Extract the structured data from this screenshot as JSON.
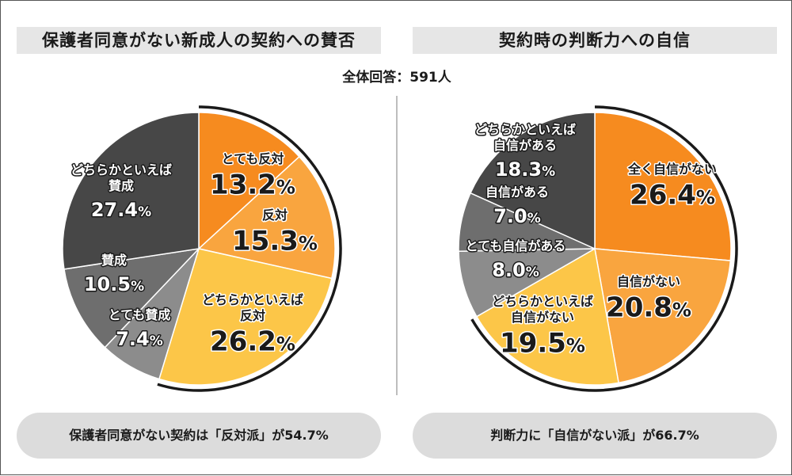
{
  "header": {
    "left_title": "保護者同意がない新成人の契約への賛否",
    "right_title": "契約時の判断力への自信",
    "respondents": "全体回答：591人"
  },
  "summary": {
    "left": "保護者同意がない契約は「反対派」が54.7%",
    "right": "判断力に「自信がない派」が66.7%"
  },
  "chart_data": [
    {
      "type": "pie",
      "title": "保護者同意がない新成人の契約への賛否",
      "unit": "%",
      "slices": [
        {
          "label": [
            "とても反対"
          ],
          "value": 13.2,
          "display": "13.2",
          "color": "#f68b1f",
          "text_color": "#1a1a1a"
        },
        {
          "label": [
            "反対"
          ],
          "value": 15.3,
          "display": "15.3",
          "color": "#f9a53f",
          "text_color": "#1a1a1a"
        },
        {
          "label": [
            "どちらかといえば",
            "反対"
          ],
          "value": 26.2,
          "display": "26.2",
          "color": "#fcc648",
          "text_color": "#1a1a1a"
        },
        {
          "label": [
            "とても賛成"
          ],
          "value": 7.4,
          "display": "7.4",
          "color": "#8c8c8c",
          "text_color": "#ffffff"
        },
        {
          "label": [
            "賛成"
          ],
          "value": 10.5,
          "display": "10.5",
          "color": "#6e6e6e",
          "text_color": "#ffffff"
        },
        {
          "label": [
            "どちらかといえば",
            "賛成"
          ],
          "value": 27.4,
          "display": "27.4",
          "color": "#474747",
          "text_color": "#ffffff"
        }
      ],
      "highlight_group": "反対派",
      "highlight_total": 54.7
    },
    {
      "type": "pie",
      "title": "契約時の判断力への自信",
      "unit": "%",
      "slices": [
        {
          "label": [
            "全く自信がない"
          ],
          "value": 26.4,
          "display": "26.4",
          "color": "#f68b1f",
          "text_color": "#1a1a1a"
        },
        {
          "label": [
            "自信がない"
          ],
          "value": 20.8,
          "display": "20.8",
          "color": "#f9a53f",
          "text_color": "#1a1a1a"
        },
        {
          "label": [
            "どちらかといえば",
            "自信がない"
          ],
          "value": 19.5,
          "display": "19.5",
          "color": "#fcc648",
          "text_color": "#1a1a1a"
        },
        {
          "label": [
            "とても自信がある"
          ],
          "value": 8.0,
          "display": "8.0",
          "color": "#8c8c8c",
          "text_color": "#ffffff"
        },
        {
          "label": [
            "自信がある"
          ],
          "value": 7.0,
          "display": "7.0",
          "color": "#6e6e6e",
          "text_color": "#ffffff"
        },
        {
          "label": [
            "どちらかといえば",
            "自信がある"
          ],
          "value": 18.3,
          "display": "18.3",
          "color": "#474747",
          "text_color": "#ffffff"
        }
      ],
      "highlight_group": "自信がない派",
      "highlight_total": 66.7
    }
  ]
}
